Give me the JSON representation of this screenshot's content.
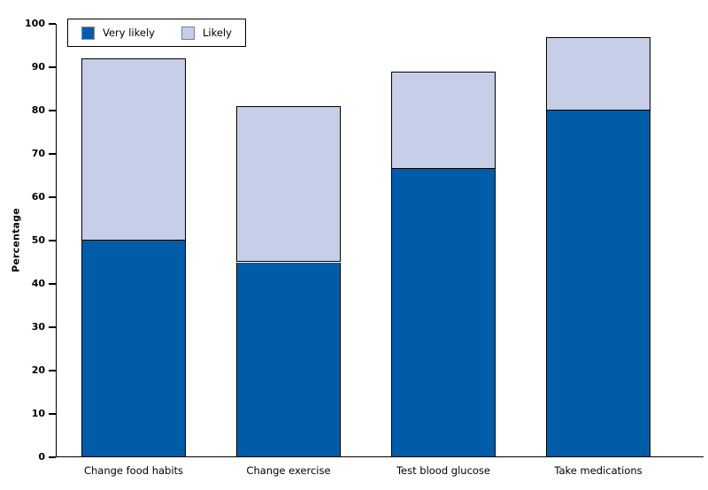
{
  "chart_data": {
    "type": "bar",
    "stacked": true,
    "title": "",
    "xlabel": "",
    "ylabel": "Percentage",
    "ylim": [
      0,
      100
    ],
    "yticks": [
      0,
      10,
      20,
      30,
      40,
      50,
      60,
      70,
      80,
      90,
      100
    ],
    "grid": false,
    "legend_position": "top-left",
    "categories": [
      "Change food habits",
      "Change exercise",
      "Test blood glucose",
      "Take medications"
    ],
    "series": [
      {
        "name": "Very likely",
        "color": "#005CA9",
        "swatch_border_color": "#8C8C8C",
        "values": [
          50,
          45,
          66.5,
          80
        ]
      },
      {
        "name": "Likely",
        "color": "#C6CEE8",
        "swatch_border_color": "#6F7FA6",
        "values": [
          42,
          36,
          22.5,
          17
        ]
      }
    ],
    "totals": [
      92,
      81,
      89,
      97
    ],
    "bar_border_color": "#000000",
    "axis_color": "#000000"
  }
}
